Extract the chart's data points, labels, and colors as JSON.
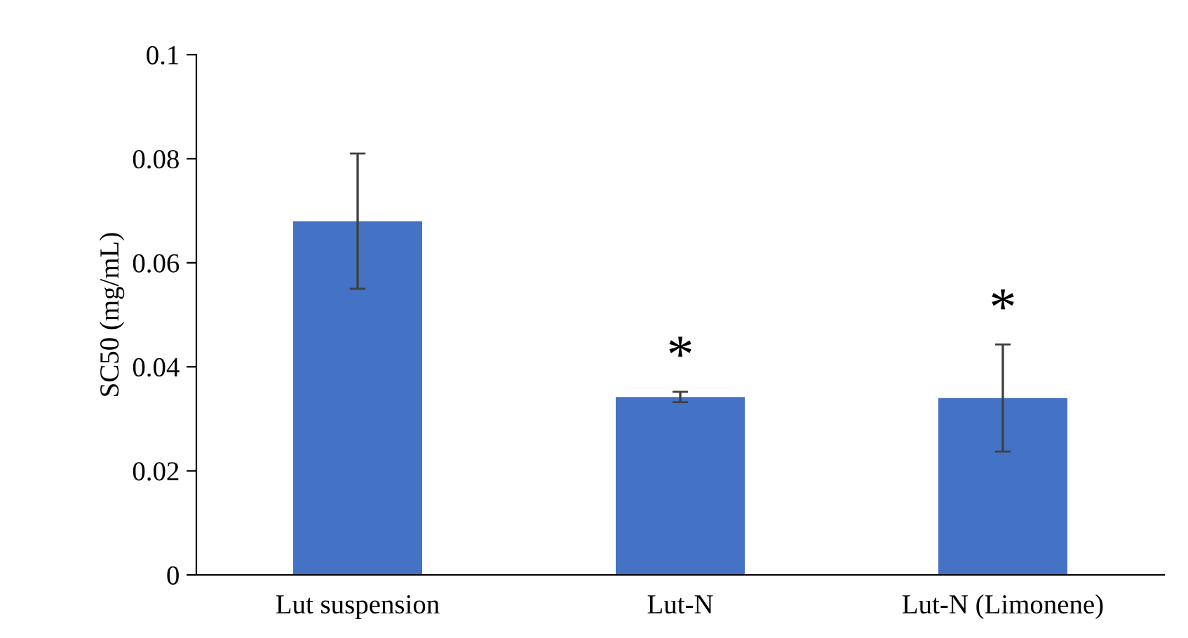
{
  "chart_data": {
    "type": "bar",
    "ylabel": "SC50 (mg/mL)",
    "categories": [
      "Lut suspension",
      "Lut-N",
      "Lut-N (Limonene)"
    ],
    "values": [
      0.068,
      0.0342,
      0.034
    ],
    "errors": [
      0.013,
      0.001,
      0.0103
    ],
    "color": "#4472c4",
    "ylim": [
      0,
      0.1
    ],
    "yticks": [
      0,
      0.02,
      0.04,
      0.06,
      0.08,
      0.1
    ],
    "grid": false,
    "legend": false,
    "annotations": [
      "*",
      "*"
    ]
  }
}
